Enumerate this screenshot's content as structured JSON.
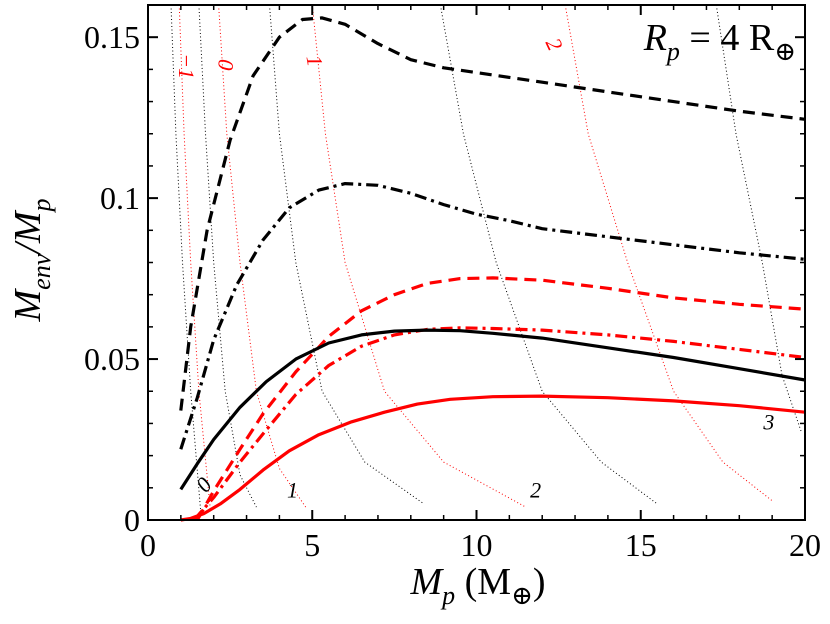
{
  "chart_data": {
    "type": "line",
    "xlim": [
      0,
      20
    ],
    "ylim": [
      0,
      0.16
    ],
    "xticks": [
      "0",
      "5",
      "10",
      "15",
      "20"
    ],
    "yticks": [
      "0",
      "0.05",
      "0.1",
      "0.15"
    ],
    "xlabel": {
      "main": "M",
      "sub": "p",
      "unit": " (M",
      "unit_sub": "⊕",
      "close": ")"
    },
    "ylabel": {
      "main1": "M",
      "sub1": "env",
      "slash": "/M",
      "sub2": "p"
    },
    "annotation": {
      "main": "R",
      "sub": "p",
      "rest": " = 4 R",
      "rest_sub": "⊕"
    },
    "colors": {
      "black": "#000000",
      "red": "#ff0000"
    },
    "series": [
      {
        "name": "black-dashed",
        "color": "#000000",
        "style": "dashed",
        "x": [
          1.0,
          1.3,
          1.8,
          2.5,
          3.2,
          4.0,
          4.7,
          5.3,
          6.0,
          7.0,
          8.0,
          9.0,
          10.0,
          12.0,
          14.0,
          16.0,
          18.0,
          20.0
        ],
        "y": [
          0.034,
          0.06,
          0.09,
          0.118,
          0.138,
          0.15,
          0.1555,
          0.156,
          0.154,
          0.148,
          0.143,
          0.1405,
          0.139,
          0.136,
          0.133,
          0.13,
          0.127,
          0.1245
        ]
      },
      {
        "name": "black-dashdot",
        "color": "#000000",
        "style": "dashdot",
        "x": [
          1.0,
          1.5,
          2.0,
          2.7,
          3.5,
          4.3,
          5.2,
          6.0,
          7.0,
          8.0,
          9.0,
          10.0,
          11.0,
          12.0,
          14.0,
          16.0,
          18.0,
          20.0
        ],
        "y": [
          0.022,
          0.038,
          0.056,
          0.073,
          0.087,
          0.097,
          0.1025,
          0.1045,
          0.104,
          0.1015,
          0.098,
          0.095,
          0.093,
          0.0905,
          0.088,
          0.0855,
          0.083,
          0.081
        ]
      },
      {
        "name": "red-dashed",
        "color": "#ff0000",
        "style": "dashed",
        "x": [
          1.5,
          2.0,
          2.8,
          3.5,
          4.5,
          5.5,
          6.5,
          7.5,
          8.5,
          9.5,
          10.5,
          12.0,
          14.0,
          16.0,
          18.0,
          20.0
        ],
        "y": [
          0.0,
          0.009,
          0.022,
          0.033,
          0.046,
          0.057,
          0.065,
          0.07,
          0.0735,
          0.075,
          0.0752,
          0.0745,
          0.072,
          0.069,
          0.067,
          0.0655
        ]
      },
      {
        "name": "red-dashdot",
        "color": "#ff0000",
        "style": "dashdot",
        "x": [
          1.4,
          2.0,
          2.8,
          3.6,
          4.5,
          5.5,
          6.5,
          7.5,
          8.5,
          9.5,
          10.5,
          12.0,
          14.0,
          16.0,
          18.0,
          20.0
        ],
        "y": [
          0.0,
          0.007,
          0.018,
          0.028,
          0.039,
          0.048,
          0.054,
          0.0575,
          0.0592,
          0.0597,
          0.0595,
          0.059,
          0.0575,
          0.0555,
          0.053,
          0.0505
        ]
      },
      {
        "name": "black-solid",
        "color": "#000000",
        "style": "solid",
        "x": [
          1.0,
          1.5,
          2.0,
          2.8,
          3.6,
          4.5,
          5.5,
          6.5,
          7.5,
          8.5,
          9.5,
          10.5,
          12.0,
          14.0,
          16.0,
          18.0,
          20.0
        ],
        "y": [
          0.0095,
          0.0175,
          0.025,
          0.035,
          0.043,
          0.05,
          0.055,
          0.0575,
          0.0587,
          0.059,
          0.0588,
          0.058,
          0.0565,
          0.0535,
          0.0505,
          0.047,
          0.0435
        ]
      },
      {
        "name": "red-solid",
        "color": "#ff0000",
        "style": "solid",
        "x": [
          1.0,
          1.3,
          1.7,
          2.2,
          2.8,
          3.5,
          4.3,
          5.2,
          6.2,
          7.2,
          8.2,
          9.2,
          10.5,
          12.0,
          14.0,
          16.0,
          18.0,
          20.0
        ],
        "y": [
          0.0,
          0.0005,
          0.002,
          0.005,
          0.0095,
          0.0155,
          0.0215,
          0.0265,
          0.0305,
          0.0335,
          0.036,
          0.0375,
          0.0383,
          0.0385,
          0.038,
          0.037,
          0.0355,
          0.0335
        ]
      }
    ],
    "contours": [
      {
        "color": "#000000",
        "x": [
          0.7,
          0.85,
          1.05,
          1.3,
          1.6
        ],
        "y": [
          0.16,
          0.12,
          0.08,
          0.04,
          0.003
        ]
      },
      {
        "color": "#ff0000",
        "x": [
          0.95,
          1.1,
          1.3,
          1.55,
          1.9
        ],
        "y": [
          0.16,
          0.12,
          0.08,
          0.04,
          0.003
        ]
      },
      {
        "color": "#000000",
        "x": [
          1.55,
          1.75,
          2.0,
          2.35,
          2.8,
          3.3
        ],
        "y": [
          0.16,
          0.12,
          0.08,
          0.04,
          0.014,
          0.004
        ]
      },
      {
        "color": "#ff0000",
        "x": [
          2.15,
          2.4,
          2.8,
          3.3,
          4.0,
          4.8
        ],
        "y": [
          0.16,
          0.12,
          0.08,
          0.04,
          0.016,
          0.004
        ]
      },
      {
        "color": "#000000",
        "x": [
          3.7,
          4.0,
          4.5,
          5.3,
          6.6,
          8.4
        ],
        "y": [
          0.16,
          0.12,
          0.08,
          0.04,
          0.018,
          0.005
        ]
      },
      {
        "color": "#ff0000",
        "x": [
          5.0,
          5.4,
          6.0,
          7.2,
          9.0,
          11.5
        ],
        "y": [
          0.16,
          0.12,
          0.08,
          0.04,
          0.018,
          0.004
        ]
      },
      {
        "color": "#000000",
        "x": [
          8.9,
          9.6,
          10.6,
          12.0,
          13.8,
          15.5
        ],
        "y": [
          0.16,
          0.12,
          0.08,
          0.04,
          0.018,
          0.005
        ]
      },
      {
        "color": "#ff0000",
        "x": [
          12.7,
          13.4,
          14.6,
          16.0,
          17.5,
          19.0
        ],
        "y": [
          0.16,
          0.12,
          0.08,
          0.04,
          0.018,
          0.006
        ]
      },
      {
        "color": "#000000",
        "x": [
          17.3,
          17.9,
          18.7,
          19.3,
          19.9
        ],
        "y": [
          0.16,
          0.12,
          0.08,
          0.045,
          0.027
        ]
      }
    ],
    "contour_labels": [
      {
        "text": "−1",
        "color": "#ff0000",
        "x": 1.1,
        "y": 0.141,
        "rotate": 90
      },
      {
        "text": "0",
        "color": "#ff0000",
        "x": 2.3,
        "y": 0.1415,
        "rotate": 95
      },
      {
        "text": "1",
        "color": "#ff0000",
        "x": 5.0,
        "y": 0.1425,
        "rotate": 80
      },
      {
        "text": "2",
        "color": "#ff0000",
        "x": 12.3,
        "y": 0.1475,
        "rotate": 65
      },
      {
        "text": "0",
        "color": "#000000",
        "x": 1.75,
        "y": 0.0105,
        "rotate": -50
      },
      {
        "text": "1",
        "color": "#000000",
        "x": 4.4,
        "y": 0.0085,
        "rotate": 0
      },
      {
        "text": "2",
        "color": "#000000",
        "x": 11.8,
        "y": 0.0085,
        "rotate": 0
      },
      {
        "text": "3",
        "color": "#000000",
        "x": 18.9,
        "y": 0.0297,
        "rotate": 0
      }
    ]
  }
}
